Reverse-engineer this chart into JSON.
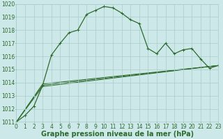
{
  "background_color": "#cce8e8",
  "grid_color": "#aacccc",
  "line_color": "#2d6a2d",
  "series": {
    "main": {
      "x": [
        0,
        1,
        2,
        3,
        4,
        5,
        6,
        7,
        8,
        9,
        10,
        11,
        12,
        13,
        14,
        15,
        16,
        17,
        18,
        19,
        20,
        21,
        22,
        23
      ],
      "y": [
        1011.0,
        1011.5,
        1012.2,
        1013.8,
        1016.1,
        1017.0,
        1017.8,
        1018.0,
        1019.2,
        1019.5,
        1019.8,
        1019.7,
        1019.3,
        1018.8,
        1018.5,
        1016.6,
        1016.2,
        1017.0,
        1016.2,
        1016.5,
        1016.6,
        1015.8,
        1015.1,
        1015.3
      ]
    },
    "line2": {
      "x": [
        0,
        3,
        23
      ],
      "y": [
        1011.0,
        1013.7,
        1015.3
      ]
    },
    "line3": {
      "x": [
        0,
        3,
        23
      ],
      "y": [
        1011.0,
        1013.8,
        1015.3
      ]
    },
    "line4": {
      "x": [
        0,
        3,
        23
      ],
      "y": [
        1011.0,
        1013.9,
        1015.3
      ]
    }
  },
  "xlabel": "Graphe pression niveau de la mer (hPa)",
  "ylim": [
    1011,
    1020
  ],
  "xlim": [
    0,
    23
  ],
  "yticks": [
    1011,
    1012,
    1013,
    1014,
    1015,
    1016,
    1017,
    1018,
    1019,
    1020
  ],
  "xticks": [
    0,
    1,
    2,
    3,
    4,
    5,
    6,
    7,
    8,
    9,
    10,
    11,
    12,
    13,
    14,
    15,
    16,
    17,
    18,
    19,
    20,
    21,
    22,
    23
  ],
  "xlabel_fontsize": 7,
  "tick_fontsize": 5.5
}
